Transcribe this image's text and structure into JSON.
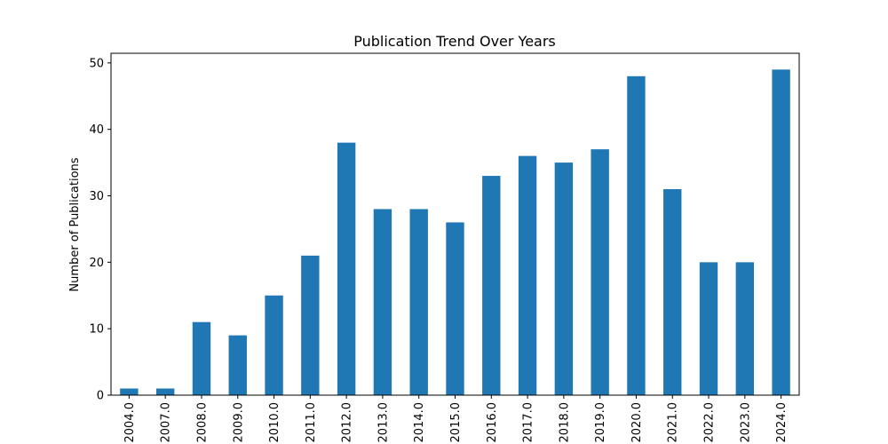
{
  "chart_data": {
    "type": "bar",
    "title": "Publication Trend Over Years",
    "xlabel": "",
    "ylabel": "Number of Publications",
    "categories": [
      "2004.0",
      "2007.0",
      "2008.0",
      "2009.0",
      "2010.0",
      "2011.0",
      "2012.0",
      "2013.0",
      "2014.0",
      "2015.0",
      "2016.0",
      "2017.0",
      "2018.0",
      "2019.0",
      "2020.0",
      "2021.0",
      "2022.0",
      "2023.0",
      "2024.0"
    ],
    "values": [
      1,
      1,
      11,
      9,
      15,
      21,
      38,
      28,
      28,
      26,
      33,
      36,
      35,
      37,
      48,
      31,
      20,
      20,
      49
    ],
    "ylim": [
      0,
      51.45
    ],
    "yticks": [
      "0",
      "10",
      "20",
      "30",
      "40",
      "50"
    ],
    "bar_color": "#1f77b4",
    "grid": false,
    "legend": false
  }
}
